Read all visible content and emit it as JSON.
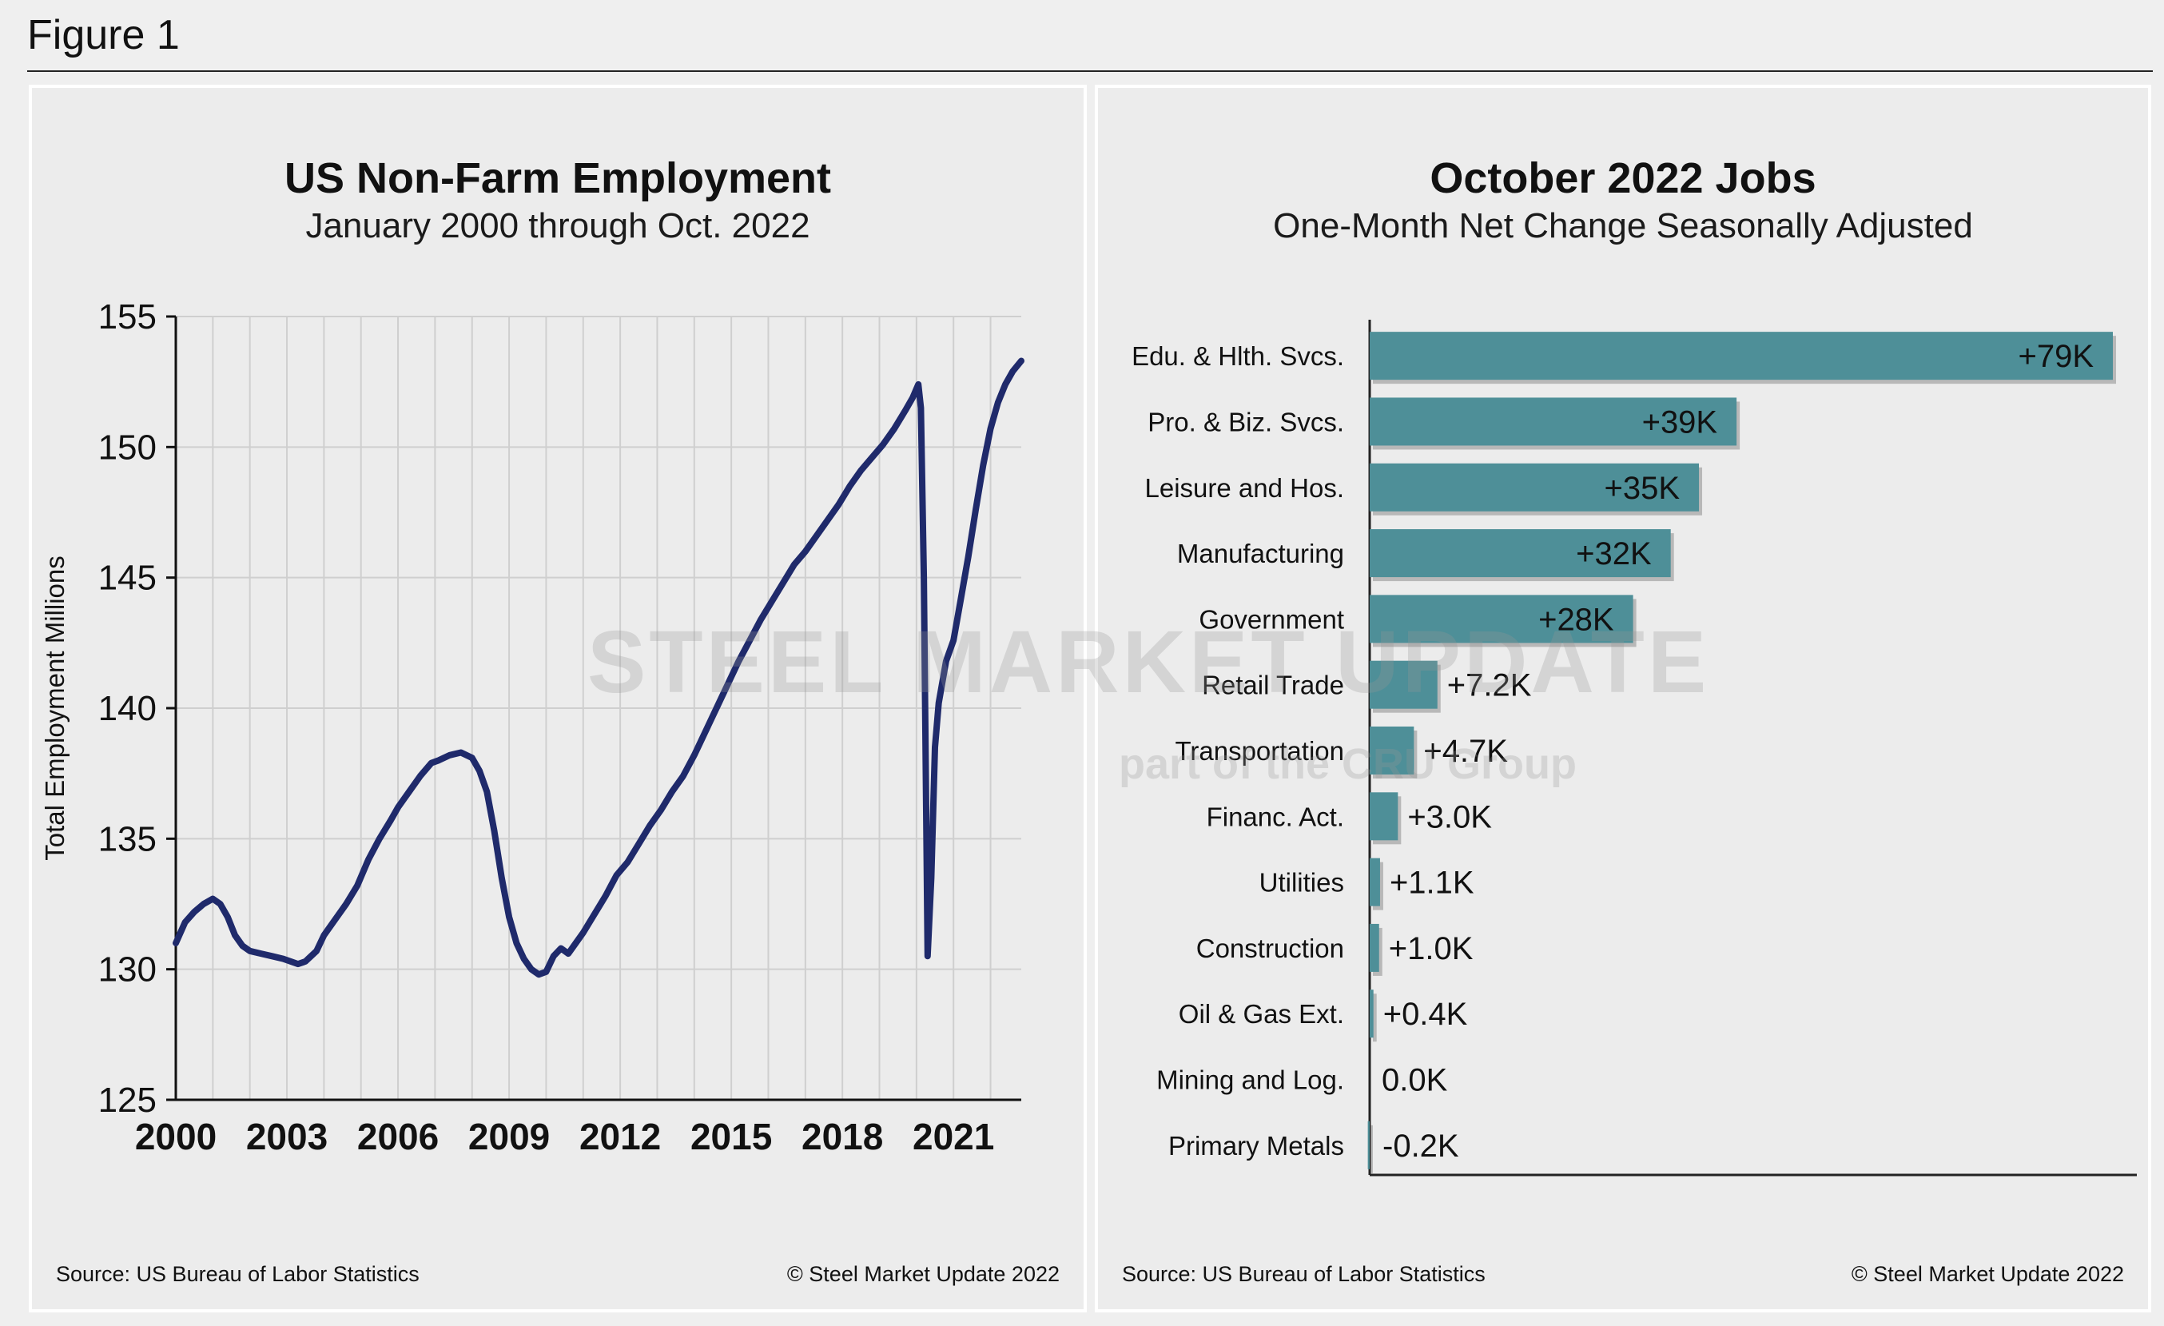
{
  "figure_label": "Figure 1",
  "left_panel": {
    "title": "US Non-Farm Employment",
    "subtitle": "January 2000 through Oct. 2022",
    "source": "Source: US Bureau of Labor Statistics",
    "copyright": "© Steel Market Update 2022"
  },
  "right_panel": {
    "title": "October 2022 Jobs",
    "subtitle": "One-Month Net Change Seasonally Adjusted",
    "source": "Source: US Bureau  of Labor Statistics",
    "copyright": "© Steel Market Update 2022"
  },
  "watermark": {
    "line1": "STEEL MARKET UPDATE",
    "line2": "part of the CRU Group"
  },
  "colors": {
    "line": "#1f2a6b",
    "bar": "#4e8f98",
    "grid": "#cfcfcf",
    "panel_bg": "#ececec",
    "page_bg": "#efefef"
  },
  "chart_data": [
    {
      "type": "line",
      "title": "US Non-Farm Employment",
      "subtitle": "January 2000 through Oct. 2022",
      "xlabel": "",
      "ylabel": "Total Employment Millions",
      "xlim": [
        2000,
        2022.83
      ],
      "ylim": [
        125,
        155
      ],
      "x_ticks": [
        "2000",
        "2003",
        "2006",
        "2009",
        "2012",
        "2015",
        "2018",
        "2021"
      ],
      "y_ticks": [
        "125",
        "130",
        "135",
        "140",
        "145",
        "150",
        "155"
      ],
      "grid": true,
      "series": [
        {
          "x": [
            2000.0,
            2000.25,
            2000.5,
            2000.75,
            2001.0,
            2001.2,
            2001.4,
            2001.6,
            2001.8,
            2002.0,
            2002.3,
            2002.6,
            2002.9,
            2003.1,
            2003.3,
            2003.5,
            2003.8,
            2004.0,
            2004.3,
            2004.6,
            2004.9,
            2005.2,
            2005.5,
            2005.8,
            2006.0,
            2006.3,
            2006.6,
            2006.9,
            2007.1,
            2007.4,
            2007.7,
            2008.0,
            2008.2,
            2008.4,
            2008.6,
            2008.8,
            2009.0,
            2009.2,
            2009.4,
            2009.6,
            2009.8,
            2010.0,
            2010.2,
            2010.4,
            2010.6,
            2010.8,
            2011.0,
            2011.3,
            2011.6,
            2011.9,
            2012.2,
            2012.5,
            2012.8,
            2013.1,
            2013.4,
            2013.7,
            2014.0,
            2014.3,
            2014.6,
            2014.9,
            2015.2,
            2015.5,
            2015.8,
            2016.1,
            2016.4,
            2016.7,
            2017.0,
            2017.3,
            2017.6,
            2017.9,
            2018.2,
            2018.5,
            2018.8,
            2019.1,
            2019.4,
            2019.7,
            2019.9,
            2020.05,
            2020.12,
            2020.2,
            2020.3,
            2020.4,
            2020.5,
            2020.6,
            2020.8,
            2021.0,
            2021.2,
            2021.4,
            2021.6,
            2021.8,
            2022.0,
            2022.2,
            2022.4,
            2022.6,
            2022.83
          ],
          "values": [
            131.0,
            131.8,
            132.2,
            132.5,
            132.7,
            132.5,
            132.0,
            131.3,
            130.9,
            130.7,
            130.6,
            130.5,
            130.4,
            130.3,
            130.2,
            130.3,
            130.7,
            131.3,
            131.9,
            132.5,
            133.2,
            134.2,
            135.0,
            135.7,
            136.2,
            136.8,
            137.4,
            137.9,
            138.0,
            138.2,
            138.3,
            138.1,
            137.6,
            136.8,
            135.3,
            133.5,
            132.0,
            131.0,
            130.4,
            130.0,
            129.8,
            129.9,
            130.5,
            130.8,
            130.6,
            131.0,
            131.4,
            132.1,
            132.8,
            133.6,
            134.1,
            134.8,
            135.5,
            136.1,
            136.8,
            137.4,
            138.2,
            139.1,
            140.0,
            140.9,
            141.8,
            142.6,
            143.4,
            144.1,
            144.8,
            145.5,
            146.0,
            146.6,
            147.2,
            147.8,
            148.5,
            149.1,
            149.6,
            150.1,
            150.7,
            151.4,
            151.9,
            152.4,
            151.5,
            145.0,
            130.5,
            133.5,
            138.5,
            140.2,
            141.8,
            142.6,
            144.2,
            145.8,
            147.6,
            149.3,
            150.7,
            151.7,
            152.4,
            152.9,
            153.3
          ]
        }
      ]
    },
    {
      "type": "bar",
      "orientation": "horizontal",
      "title": "October 2022 Jobs",
      "subtitle": "One-Month Net Change Seasonally Adjusted",
      "xlabel": "",
      "ylabel": "",
      "xlim": [
        -1,
        79
      ],
      "categories": [
        "Edu. & Hlth. Svcs.",
        "Pro. & Biz. Svcs.",
        "Leisure and Hos.",
        "Manufacturing",
        "Government",
        "Retail Trade",
        "Transportation",
        "Financ. Act.",
        "Utilities",
        "Construction",
        "Oil & Gas Ext.",
        "Mining and Log.",
        "Primary Metals"
      ],
      "values": [
        79,
        39,
        35,
        32,
        28,
        7.2,
        4.7,
        3.0,
        1.1,
        1.0,
        0.4,
        0.0,
        -0.2
      ],
      "labels": [
        "+79K",
        "+39K",
        "+35K",
        "+32K",
        "+28K",
        "+7.2K",
        "+4.7K",
        "+3.0K",
        "+1.1K",
        "+1.0K",
        "+0.4K",
        "0.0K",
        "-0.2K"
      ],
      "grid": false
    }
  ]
}
